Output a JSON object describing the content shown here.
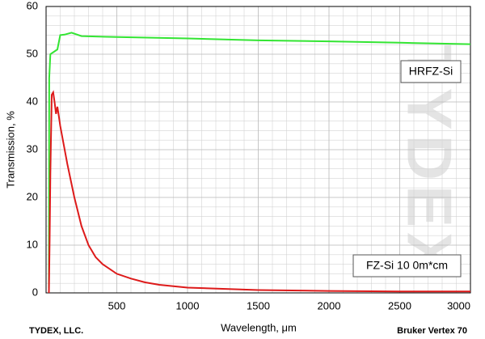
{
  "chart_data": {
    "type": "line",
    "x_label": "Wavelength, μm",
    "y_label": "Transmission, %",
    "footer_left": "TYDEX, LLC.",
    "footer_right": "Bruker Vertex 70",
    "watermark": "TYDEX",
    "xlim": [
      0,
      3000
    ],
    "ylim": [
      0,
      60
    ],
    "xticks": [
      500,
      1000,
      1500,
      2000,
      2500,
      3000
    ],
    "yticks": [
      0,
      10,
      20,
      30,
      40,
      50,
      60
    ],
    "x_minor_ticks": [
      100,
      200,
      300,
      400,
      600,
      700,
      800,
      900,
      1100,
      1200,
      1300,
      1400,
      1600,
      1700,
      1800,
      1900,
      2100,
      2200,
      2300,
      2400,
      2600,
      2700,
      2800,
      2900
    ],
    "y_minor_ticks": [
      2,
      4,
      6,
      8,
      12,
      14,
      16,
      18,
      22,
      24,
      26,
      28,
      32,
      34,
      36,
      38,
      42,
      44,
      46,
      48,
      52,
      54,
      56,
      58
    ],
    "grid": true,
    "series": [
      {
        "name": "HRFZ-Si",
        "color": "#33e533",
        "x": [
          20,
          22,
          30,
          40,
          60,
          80,
          100,
          130,
          180,
          250,
          500,
          1000,
          1500,
          2000,
          2500,
          3000
        ],
        "values": [
          1,
          45,
          50,
          50.2,
          50.6,
          51,
          54,
          54.1,
          54.5,
          53.8,
          53.6,
          53.3,
          52.9,
          52.7,
          52.4,
          52.1
        ]
      },
      {
        "name": "FZ-Si 10 0m*cm",
        "color": "#dd1a1a",
        "x": [
          20,
          25,
          30,
          40,
          50,
          60,
          70,
          80,
          90,
          100,
          150,
          200,
          250,
          300,
          350,
          400,
          500,
          600,
          700,
          800,
          1000,
          1500,
          2000,
          2500,
          3000
        ],
        "values": [
          0,
          11,
          25,
          41.5,
          42,
          40,
          37.5,
          39,
          37,
          35,
          27,
          20,
          14,
          10,
          7.5,
          6,
          4,
          3,
          2.2,
          1.7,
          1.1,
          0.6,
          0.4,
          0.3,
          0.3
        ]
      }
    ]
  }
}
